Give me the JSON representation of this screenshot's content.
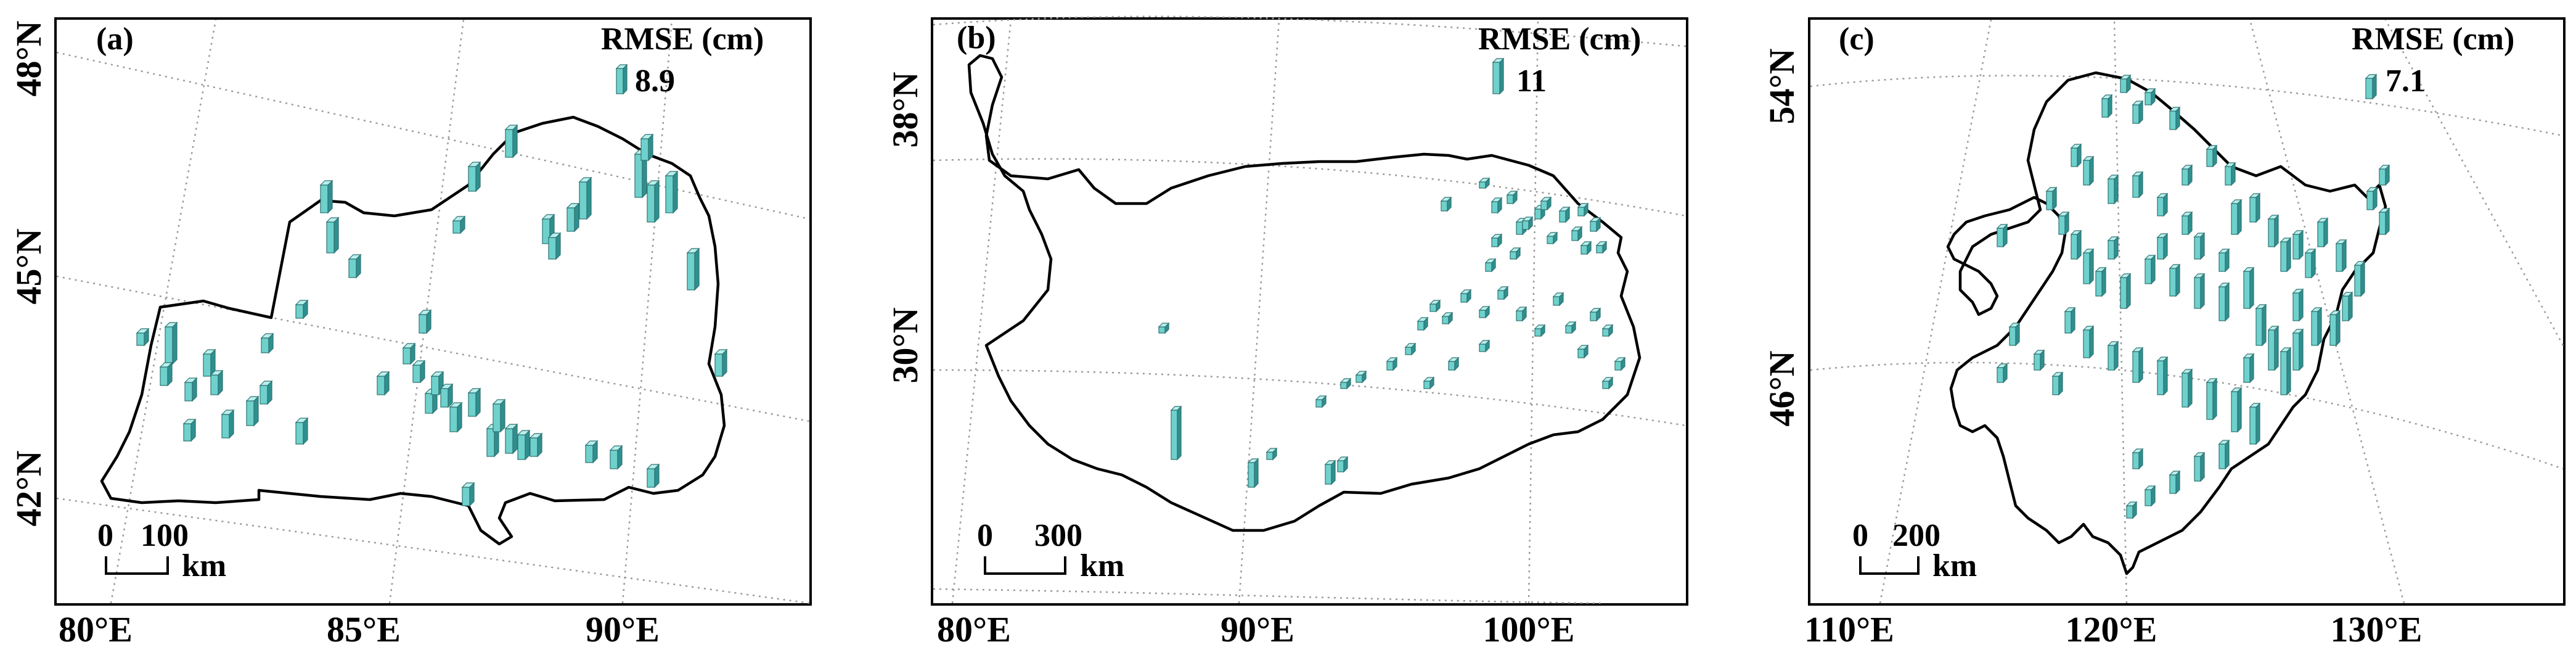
{
  "colors": {
    "bar_front": "#6fd1cc",
    "bar_side": "#2f8f8f",
    "bar_top": "#b9f0ec",
    "frame": "#000000",
    "graticule": "#9a9a9a"
  },
  "panels": [
    {
      "label": "(a)",
      "legend_title": "RMSE (cm)",
      "legend_value": "8.9",
      "legend_rmse": 8.9,
      "scale_zero": "0",
      "scale_value": "100",
      "scale_unit": "km",
      "lat_ticks": [
        "48°N",
        "45°N",
        "42°N"
      ],
      "lon_ticks": [
        "80°E",
        "85°E",
        "90°E"
      ]
    },
    {
      "label": "(b)",
      "legend_title": "RMSE (cm)",
      "legend_value": "11",
      "legend_rmse": 11,
      "scale_zero": "0",
      "scale_value": "300",
      "scale_unit": "km",
      "lat_ticks": [
        "38°N",
        "30°N"
      ],
      "lon_ticks": [
        "80°E",
        "90°E",
        "100°E"
      ]
    },
    {
      "label": "(c)",
      "legend_title": "RMSE (cm)",
      "legend_value": "7.1",
      "legend_rmse": 7.1,
      "scale_zero": "0",
      "scale_value": "200",
      "scale_unit": "km",
      "lat_ticks": [
        "54°N",
        "46°N"
      ],
      "lon_ticks": [
        "110°E",
        "120°E",
        "130°E"
      ]
    }
  ]
}
